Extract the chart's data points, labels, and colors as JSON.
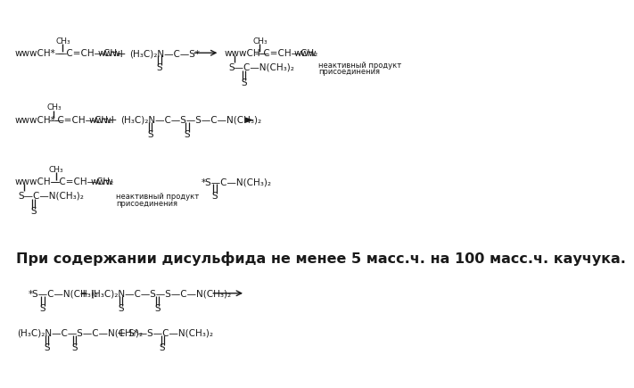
{
  "title_text": "При содержании дисульфида не менее 5 масс.ч. на 100 масс.ч. каучука.",
  "bg_color": "#ffffff",
  "text_color": "#1a1a1a",
  "font_size_main": 7.5,
  "font_size_small": 6.5,
  "font_size_title": 11.5
}
